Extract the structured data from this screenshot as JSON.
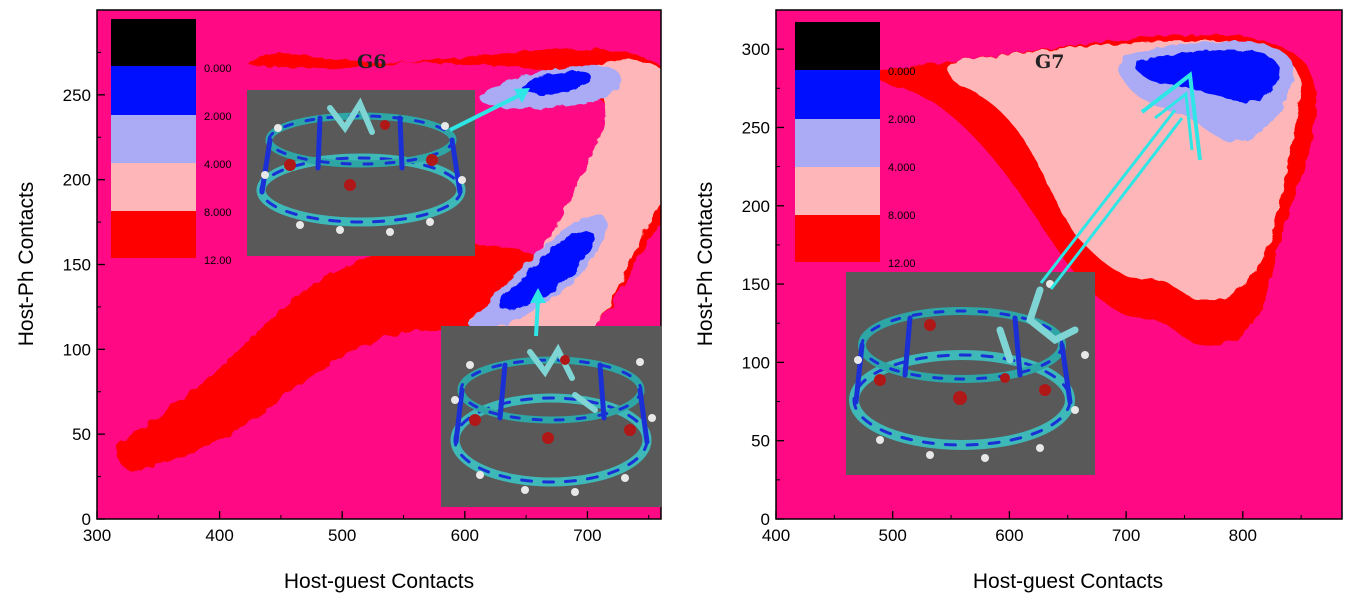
{
  "colors": {
    "background_level": "#ff0a84",
    "band_12": "#ff0000",
    "band_8": "#ffb6b8",
    "band_4": "#aaaaf5",
    "band_2": "#0010ff",
    "band_0": "#000000",
    "arrow": "#2ee6e6",
    "inset_bg": "#595959"
  },
  "chart_data": [
    {
      "type": "heatmap",
      "title": "G6",
      "xlabel": "Host-guest Contacts",
      "ylabel": "Host-Ph Contacts",
      "xlim": [
        300,
        760
      ],
      "ylim": [
        0,
        300
      ],
      "xticks": [
        "300",
        "400",
        "500",
        "600",
        "700"
      ],
      "yticks": [
        "0",
        "50",
        "100",
        "150",
        "200",
        "250"
      ],
      "xtick_values": [
        300,
        400,
        500,
        600,
        700
      ],
      "ytick_values": [
        0,
        50,
        100,
        150,
        200,
        250
      ],
      "legend": {
        "placement": "top-left",
        "levels": [
          "0.000",
          "2.000",
          "4.000",
          "8.000",
          "12.00"
        ]
      },
      "annotations": [
        "molecule-inset-top",
        "molecule-inset-bottom",
        "arrow-to-upper-minimum",
        "arrow-to-lower-minimum"
      ]
    },
    {
      "type": "heatmap",
      "title": "G7",
      "xlabel": "Host-guest Contacts",
      "ylabel": "Host-Ph Contacts",
      "xlim": [
        400,
        885
      ],
      "ylim": [
        0,
        325
      ],
      "xticks": [
        "400",
        "500",
        "600",
        "700",
        "800"
      ],
      "yticks": [
        "0",
        "50",
        "100",
        "150",
        "200",
        "250",
        "300"
      ],
      "xtick_values": [
        400,
        500,
        600,
        700,
        800
      ],
      "ytick_values": [
        0,
        50,
        100,
        150,
        200,
        250,
        300
      ],
      "legend": {
        "placement": "top-left",
        "levels": [
          "0.000",
          "2.000",
          "4.000",
          "8.000",
          "12.00"
        ]
      },
      "annotations": [
        "molecule-inset",
        "double-arrow-to-minimum"
      ]
    }
  ]
}
